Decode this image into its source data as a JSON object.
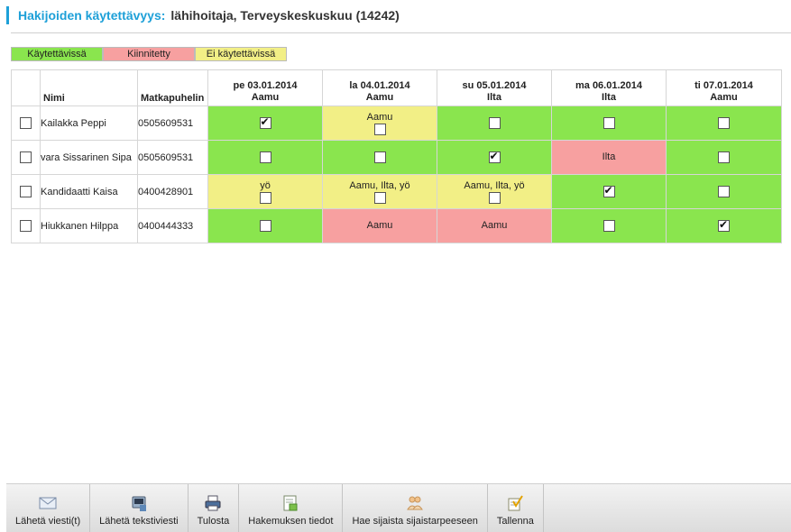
{
  "header": {
    "label": "Hakijoiden käytettävyys:",
    "value": "lähihoitaja, Terveyskeskuskuu (14242)"
  },
  "legend": {
    "available": "Käytettävissä",
    "locked": "Kiinnitetty",
    "unavailable": "Ei käytettävissä"
  },
  "colors": {
    "accent": "#1ea0d8",
    "available": "#8ae54e",
    "locked": "#f7a0a0",
    "unavailable": "#f2ef86"
  },
  "table": {
    "col_name": "Nimi",
    "col_phone": "Matkapuhelin",
    "days": [
      {
        "date": "pe 03.01.2014",
        "shift": "Aamu"
      },
      {
        "date": "la 04.01.2014",
        "shift": "Aamu"
      },
      {
        "date": "su 05.01.2014",
        "shift": "Ilta"
      },
      {
        "date": "ma 06.01.2014",
        "shift": "Ilta"
      },
      {
        "date": "ti 07.01.2014",
        "shift": "Aamu"
      }
    ],
    "rows": [
      {
        "name": "Kailakka Peppi",
        "phone": "0505609531",
        "cells": [
          {
            "status": "green",
            "text": "",
            "checkbox": true,
            "checked": true
          },
          {
            "status": "yellow",
            "text": "Aamu",
            "checkbox": true,
            "checked": false
          },
          {
            "status": "green",
            "text": "",
            "checkbox": true,
            "checked": false
          },
          {
            "status": "green",
            "text": "",
            "checkbox": true,
            "checked": false
          },
          {
            "status": "green",
            "text": "",
            "checkbox": true,
            "checked": false
          }
        ]
      },
      {
        "name": "vara Sissarinen Sipa",
        "phone": "0505609531",
        "cells": [
          {
            "status": "green",
            "text": "",
            "checkbox": true,
            "checked": false
          },
          {
            "status": "green",
            "text": "",
            "checkbox": true,
            "checked": false
          },
          {
            "status": "green",
            "text": "",
            "checkbox": true,
            "checked": true
          },
          {
            "status": "red",
            "text": "Ilta",
            "checkbox": false,
            "checked": false
          },
          {
            "status": "green",
            "text": "",
            "checkbox": true,
            "checked": false
          }
        ]
      },
      {
        "name": "Kandidaatti Kaisa",
        "phone": "0400428901",
        "cells": [
          {
            "status": "yellow",
            "text": "yö",
            "checkbox": true,
            "checked": false
          },
          {
            "status": "yellow",
            "text": "Aamu, Ilta, yö",
            "checkbox": true,
            "checked": false
          },
          {
            "status": "yellow",
            "text": "Aamu, Ilta, yö",
            "checkbox": true,
            "checked": false
          },
          {
            "status": "green",
            "text": "",
            "checkbox": true,
            "checked": true
          },
          {
            "status": "green",
            "text": "",
            "checkbox": true,
            "checked": false
          }
        ]
      },
      {
        "name": "Hiukkanen Hilppa",
        "phone": "0400444333",
        "cells": [
          {
            "status": "green",
            "text": "",
            "checkbox": true,
            "checked": false
          },
          {
            "status": "red",
            "text": "Aamu",
            "checkbox": false,
            "checked": false
          },
          {
            "status": "red",
            "text": "Aamu",
            "checkbox": false,
            "checked": false
          },
          {
            "status": "green",
            "text": "",
            "checkbox": true,
            "checked": false
          },
          {
            "status": "green",
            "text": "",
            "checkbox": true,
            "checked": true
          }
        ]
      }
    ]
  },
  "toolbar": [
    {
      "label": "Lähetä viesti(t)",
      "icon": "envelope-icon"
    },
    {
      "label": "Lähetä tekstiviesti",
      "icon": "phone-icon"
    },
    {
      "label": "Tulosta",
      "icon": "printer-icon"
    },
    {
      "label": "Hakemuksen tiedot",
      "icon": "document-icon"
    },
    {
      "label": "Hae sijaista sijaistarpeeseen",
      "icon": "users-icon"
    },
    {
      "label": "Tallenna",
      "icon": "save-icon"
    }
  ]
}
